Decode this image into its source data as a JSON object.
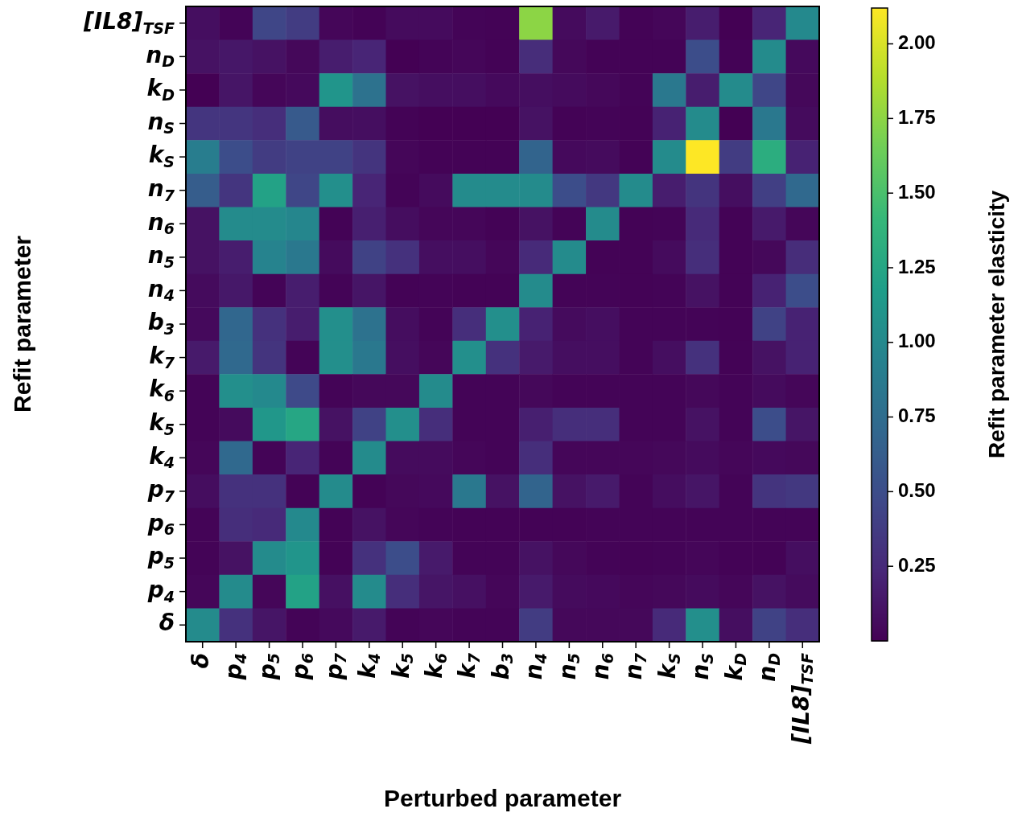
{
  "chart_data": {
    "type": "heatmap",
    "xlabel": "Perturbed parameter",
    "ylabel": "Refit parameter",
    "clabel": "Refit parameter elasticity",
    "categories": [
      "δ",
      "p$_{4}$",
      "p$_{5}$",
      "p$_{6}$",
      "p$_{7}$",
      "k$_{4}$",
      "k$_{5}$",
      "k$_{6}$",
      "k$_{7}$",
      "b$_{3}$",
      "n$_{4}$",
      "n$_{5}$",
      "n$_{6}$",
      "n$_{7}$",
      "k$_{S}$",
      "n$_{S}$",
      "k$_{D}$",
      "n$_{D}$",
      "[IL8]$_{TSF}$"
    ],
    "y_categories": [
      "[IL8]$_{TSF}$",
      "n$_{D}$",
      "k$_{D}$",
      "n$_{S}$",
      "k$_{S}$",
      "n$_{7}$",
      "n$_{6}$",
      "n$_{5}$",
      "n$_{4}$",
      "b$_{3}$",
      "k$_{7}$",
      "k$_{6}$",
      "k$_{5}$",
      "k$_{4}$",
      "p$_{7}$",
      "p$_{6}$",
      "p$_{5}$",
      "p$_{4}$",
      "δ"
    ],
    "cells": [
      [
        0.08,
        0.02,
        0.45,
        0.38,
        0.03,
        0.01,
        0.06,
        0.06,
        0.02,
        0.01,
        1.75,
        0.06,
        0.15,
        0.01,
        0.03,
        0.17,
        0.0,
        0.22,
        1.0
      ],
      [
        0.1,
        0.13,
        0.1,
        0.04,
        0.17,
        0.22,
        0.0,
        0.02,
        0.03,
        0.01,
        0.27,
        0.04,
        0.01,
        0.01,
        0.01,
        0.5,
        0.01,
        1.02,
        0.05
      ],
      [
        0.0,
        0.12,
        0.03,
        0.05,
        1.1,
        0.8,
        0.1,
        0.08,
        0.08,
        0.05,
        0.08,
        0.06,
        0.04,
        0.02,
        0.85,
        0.17,
        1.02,
        0.45,
        0.04
      ],
      [
        0.33,
        0.33,
        0.28,
        0.6,
        0.07,
        0.08,
        0.01,
        0.0,
        0.0,
        0.0,
        0.1,
        0.01,
        0.02,
        0.01,
        0.2,
        1.02,
        0.0,
        0.85,
        0.06
      ],
      [
        0.9,
        0.5,
        0.38,
        0.42,
        0.42,
        0.32,
        0.03,
        0.01,
        0.01,
        0.01,
        0.68,
        0.05,
        0.06,
        0.01,
        1.02,
        2.12,
        0.38,
        1.32,
        0.2
      ],
      [
        0.62,
        0.33,
        1.22,
        0.45,
        1.05,
        0.22,
        0.02,
        0.06,
        1.02,
        1.02,
        1.02,
        0.5,
        0.35,
        1.02,
        0.17,
        0.32,
        0.08,
        0.4,
        0.72
      ],
      [
        0.1,
        1.02,
        1.02,
        0.98,
        0.01,
        0.18,
        0.07,
        0.03,
        0.03,
        0.01,
        0.1,
        0.02,
        1.02,
        0.01,
        0.02,
        0.25,
        0.01,
        0.15,
        0.03
      ],
      [
        0.1,
        0.17,
        0.95,
        0.85,
        0.06,
        0.42,
        0.3,
        0.08,
        0.08,
        0.03,
        0.25,
        1.02,
        0.01,
        0.01,
        0.06,
        0.28,
        0.01,
        0.04,
        0.27
      ],
      [
        0.06,
        0.14,
        0.02,
        0.17,
        0.02,
        0.12,
        0.01,
        0.02,
        0.01,
        0.01,
        1.02,
        0.02,
        0.02,
        0.01,
        0.02,
        0.1,
        0.01,
        0.2,
        0.5
      ],
      [
        0.05,
        0.7,
        0.3,
        0.17,
        1.05,
        0.8,
        0.07,
        0.02,
        0.28,
        1.05,
        0.2,
        0.06,
        0.08,
        0.02,
        0.02,
        0.02,
        0.01,
        0.42,
        0.2
      ],
      [
        0.15,
        0.72,
        0.32,
        0.02,
        1.05,
        0.85,
        0.08,
        0.03,
        1.05,
        0.3,
        0.15,
        0.08,
        0.08,
        0.02,
        0.08,
        0.3,
        0.01,
        0.1,
        0.2
      ],
      [
        0.02,
        1.05,
        1.0,
        0.48,
        0.02,
        0.04,
        0.04,
        1.02,
        0.02,
        0.02,
        0.04,
        0.02,
        0.02,
        0.02,
        0.02,
        0.04,
        0.02,
        0.06,
        0.03
      ],
      [
        0.02,
        0.06,
        1.12,
        1.25,
        0.1,
        0.42,
        1.05,
        0.28,
        0.02,
        0.02,
        0.18,
        0.28,
        0.28,
        0.02,
        0.02,
        0.1,
        0.02,
        0.5,
        0.12
      ],
      [
        0.03,
        0.72,
        0.02,
        0.22,
        0.02,
        1.02,
        0.06,
        0.06,
        0.03,
        0.02,
        0.28,
        0.03,
        0.03,
        0.03,
        0.04,
        0.06,
        0.03,
        0.05,
        0.04
      ],
      [
        0.07,
        0.3,
        0.3,
        0.01,
        1.02,
        0.01,
        0.04,
        0.05,
        0.85,
        0.1,
        0.68,
        0.1,
        0.15,
        0.02,
        0.07,
        0.12,
        0.02,
        0.32,
        0.35
      ],
      [
        0.02,
        0.28,
        0.25,
        1.0,
        0.01,
        0.1,
        0.03,
        0.02,
        0.01,
        0.01,
        0.01,
        0.01,
        0.02,
        0.02,
        0.02,
        0.02,
        0.02,
        0.02,
        0.02
      ],
      [
        0.02,
        0.1,
        1.02,
        1.1,
        0.01,
        0.3,
        0.5,
        0.15,
        0.02,
        0.02,
        0.1,
        0.04,
        0.02,
        0.01,
        0.02,
        0.03,
        0.01,
        0.01,
        0.08
      ],
      [
        0.03,
        1.02,
        0.03,
        1.22,
        0.09,
        1.02,
        0.28,
        0.12,
        0.09,
        0.03,
        0.15,
        0.06,
        0.05,
        0.03,
        0.04,
        0.06,
        0.03,
        0.1,
        0.06
      ],
      [
        1.02,
        0.3,
        0.12,
        0.02,
        0.05,
        0.15,
        0.02,
        0.03,
        0.02,
        0.02,
        0.38,
        0.04,
        0.04,
        0.04,
        0.25,
        1.05,
        0.08,
        0.42,
        0.28
      ]
    ],
    "clim": [
      0,
      2.12
    ],
    "cticks": [
      0.25,
      {
        "value": 0.5,
        "label": "0.50"
      },
      0.75,
      {
        "value": 1,
        "label": "1.00"
      },
      1.25,
      {
        "value": 1.5,
        "label": "1.50"
      },
      1.75,
      {
        "value": 2,
        "label": "2.00"
      }
    ]
  }
}
